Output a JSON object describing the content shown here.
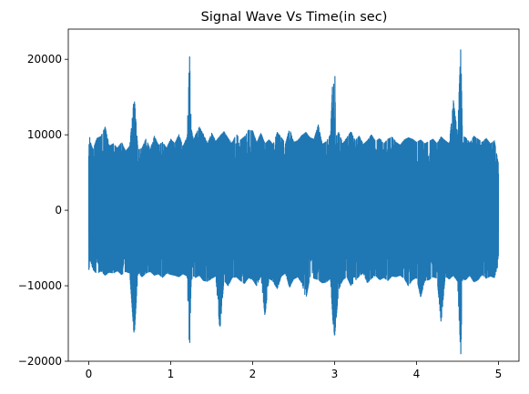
{
  "chart_data": {
    "type": "line",
    "title": "Signal Wave Vs Time(in sec)",
    "xlabel": "",
    "ylabel": "",
    "xlim": [
      -0.25,
      5.25
    ],
    "ylim": [
      -20000,
      24000
    ],
    "x_ticks": [
      0,
      1,
      2,
      3,
      4,
      5
    ],
    "x_tick_labels": [
      "0",
      "1",
      "2",
      "3",
      "4",
      "5"
    ],
    "y_ticks": [
      -20000,
      -10000,
      0,
      10000,
      20000
    ],
    "y_tick_labels": [
      "−20000",
      "−10000",
      "0",
      "10000",
      "20000"
    ],
    "grid": false,
    "legend": "none",
    "line_color": "#1f77b4",
    "series": [
      {
        "envelope_x": [
          0.0,
          0.02,
          0.05,
          0.1,
          0.15,
          0.2,
          0.25,
          0.3,
          0.35,
          0.4,
          0.45,
          0.5,
          0.55,
          0.56,
          0.6,
          0.65,
          0.7,
          0.75,
          0.8,
          0.85,
          0.9,
          0.95,
          1.0,
          1.05,
          1.1,
          1.15,
          1.2,
          1.23,
          1.25,
          1.28,
          1.3,
          1.35,
          1.4,
          1.45,
          1.5,
          1.55,
          1.6,
          1.65,
          1.7,
          1.75,
          1.8,
          1.85,
          1.9,
          1.95,
          2.0,
          2.05,
          2.1,
          2.15,
          2.2,
          2.25,
          2.3,
          2.35,
          2.4,
          2.45,
          2.5,
          2.55,
          2.6,
          2.65,
          2.7,
          2.75,
          2.8,
          2.85,
          2.9,
          2.95,
          2.98,
          3.0,
          3.02,
          3.05,
          3.1,
          3.15,
          3.2,
          3.25,
          3.3,
          3.35,
          3.4,
          3.45,
          3.5,
          3.55,
          3.6,
          3.65,
          3.7,
          3.75,
          3.8,
          3.85,
          3.9,
          3.95,
          4.0,
          4.05,
          4.1,
          4.15,
          4.2,
          4.25,
          4.3,
          4.35,
          4.4,
          4.45,
          4.5,
          4.54,
          4.56,
          4.6,
          4.65,
          4.7,
          4.75,
          4.8,
          4.85,
          4.9,
          4.95,
          5.0
        ],
        "upper": [
          10500,
          9000,
          8000,
          9500,
          9800,
          11000,
          8500,
          8800,
          8200,
          9000,
          7800,
          8500,
          14500,
          14300,
          8000,
          8200,
          9500,
          8000,
          9800,
          8600,
          9000,
          8200,
          9400,
          8800,
          10000,
          8400,
          9700,
          20700,
          10800,
          9200,
          9900,
          11000,
          10000,
          8800,
          10200,
          9100,
          9800,
          10400,
          9500,
          8900,
          10100,
          9300,
          9700,
          10600,
          10500,
          8900,
          10200,
          8800,
          9300,
          8700,
          10300,
          9600,
          8800,
          10800,
          9000,
          9200,
          9900,
          10300,
          9600,
          9400,
          11300,
          8700,
          9100,
          10000,
          18200,
          19600,
          9800,
          10300,
          8800,
          9600,
          10400,
          9200,
          9800,
          8700,
          9200,
          10000,
          9100,
          9500,
          8800,
          9400,
          9700,
          9000,
          8600,
          9300,
          9600,
          9400,
          9000,
          9300,
          8800,
          9100,
          9400,
          8800,
          9700,
          9200,
          8800,
          14500,
          10000,
          21700,
          9800,
          9600,
          8900,
          9800,
          9400,
          9000,
          9500,
          8800,
          9200,
          6000
        ],
        "lower": [
          -8000,
          -6500,
          -7800,
          -8400,
          -8000,
          -8600,
          -8200,
          -8300,
          -8000,
          -8500,
          -8100,
          -8300,
          -16200,
          -15800,
          -8200,
          -8800,
          -8300,
          -8100,
          -8600,
          -8400,
          -8900,
          -8300,
          -8500,
          -8600,
          -8800,
          -8400,
          -8700,
          -18800,
          -9200,
          -8700,
          -8900,
          -8600,
          -9300,
          -9400,
          -9000,
          -8700,
          -16000,
          -9200,
          -10000,
          -8900,
          -8800,
          -9300,
          -9700,
          -8900,
          -9200,
          -10000,
          -8600,
          -14000,
          -9000,
          -9400,
          -10400,
          -8700,
          -8300,
          -10200,
          -9100,
          -8800,
          -9600,
          -11700,
          -8800,
          -9000,
          -9200,
          -9600,
          -9500,
          -9000,
          -14800,
          -16700,
          -14200,
          -10500,
          -9200,
          -8800,
          -10000,
          -9300,
          -8700,
          -8300,
          -9600,
          -9000,
          -8600,
          -9200,
          -8900,
          -9300,
          -8700,
          -8800,
          -8600,
          -9000,
          -10000,
          -9200,
          -8900,
          -11500,
          -9300,
          -9200,
          -8800,
          -9000,
          -14900,
          -8700,
          -9100,
          -8600,
          -9400,
          -19200,
          -9100,
          -9200,
          -8600,
          -9500,
          -9200,
          -8500,
          -9000,
          -8700,
          -8900,
          -7000
        ]
      }
    ]
  }
}
